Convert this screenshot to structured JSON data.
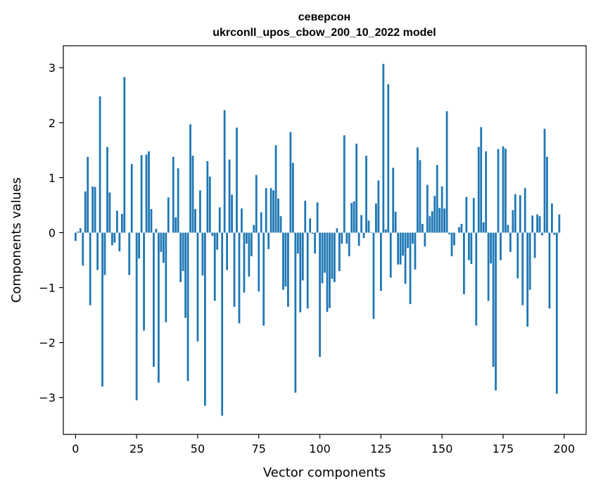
{
  "chart_data": {
    "type": "bar",
    "title": "северсон",
    "subtitle": "ukrconll_upos_cbow_200_10_2022 model",
    "xlabel": "Vector components",
    "ylabel": "Components values",
    "xlim": [
      -5,
      209
    ],
    "ylim": [
      -3.67,
      3.4
    ],
    "xticks": [
      0,
      25,
      50,
      75,
      100,
      125,
      150,
      175,
      200
    ],
    "yticks": [
      -3,
      -2,
      -1,
      0,
      1,
      2,
      3
    ],
    "ytick_labels": [
      "−3",
      "−2",
      "−1",
      "0",
      "1",
      "2",
      "3"
    ],
    "grid": false,
    "bar_color": "#1f77b4",
    "values": [
      -0.15,
      0.02,
      0.08,
      -0.6,
      0.75,
      1.38,
      -1.32,
      0.84,
      0.83,
      -0.68,
      2.48,
      -2.8,
      -0.77,
      1.56,
      0.73,
      -0.23,
      -0.18,
      0.4,
      -0.34,
      0.34,
      2.83,
      0.0,
      -0.77,
      1.25,
      0.0,
      -3.05,
      -0.47,
      1.41,
      -1.78,
      1.42,
      1.48,
      0.43,
      -2.44,
      0.07,
      -2.73,
      -0.35,
      -0.55,
      -1.63,
      0.64,
      0.0,
      1.38,
      0.28,
      1.17,
      -0.9,
      -0.7,
      -1.55,
      -2.7,
      1.97,
      1.4,
      0.43,
      -1.98,
      0.77,
      -0.78,
      -3.15,
      1.3,
      1.02,
      -0.06,
      -1.24,
      -0.31,
      0.46,
      -3.33,
      2.23,
      -0.68,
      1.33,
      0.69,
      -1.35,
      1.91,
      -1.65,
      0.44,
      -1.09,
      -0.2,
      -0.8,
      -0.43,
      0.14,
      1.05,
      -1.07,
      0.37,
      -1.69,
      0.81,
      -0.3,
      0.81,
      0.77,
      1.59,
      0.62,
      0.3,
      -1.04,
      -0.98,
      -1.35,
      1.83,
      1.27,
      -2.91,
      -0.38,
      -1.45,
      -0.87,
      0.58,
      -1.38,
      0.26,
      -0.02,
      -0.38,
      0.55,
      -2.26,
      -0.92,
      -0.73,
      -1.44,
      -1.37,
      -0.84,
      -0.9,
      0.08,
      -0.7,
      -0.2,
      1.77,
      -0.2,
      -0.43,
      0.54,
      0.57,
      1.62,
      -0.24,
      0.32,
      -0.1,
      1.4,
      0.22,
      0.01,
      -1.57,
      0.53,
      0.95,
      -1.06,
      3.07,
      0.06,
      2.7,
      -0.82,
      1.18,
      0.38,
      -0.58,
      -0.58,
      -0.42,
      -0.93,
      -0.28,
      -1.3,
      -0.2,
      -0.67,
      1.55,
      1.32,
      0.16,
      -0.25,
      0.87,
      0.3,
      0.39,
      0.67,
      1.23,
      0.45,
      0.84,
      0.44,
      2.21,
      -0.03,
      -0.43,
      -0.23,
      0.0,
      0.1,
      0.16,
      -1.12,
      0.65,
      -0.5,
      -0.57,
      0.63,
      -1.69,
      1.56,
      1.92,
      0.19,
      1.48,
      -1.24,
      -0.56,
      -2.44,
      -2.87,
      1.52,
      -0.5,
      1.57,
      1.53,
      0.14,
      -0.35,
      0.41,
      0.7,
      -0.83,
      0.68,
      -1.32,
      0.81,
      -1.71,
      -1.04,
      0.31,
      -0.46,
      0.33,
      0.3,
      -0.05,
      1.89,
      1.38,
      -1.38,
      0.53,
      -0.04,
      -2.93,
      0.33
    ]
  }
}
